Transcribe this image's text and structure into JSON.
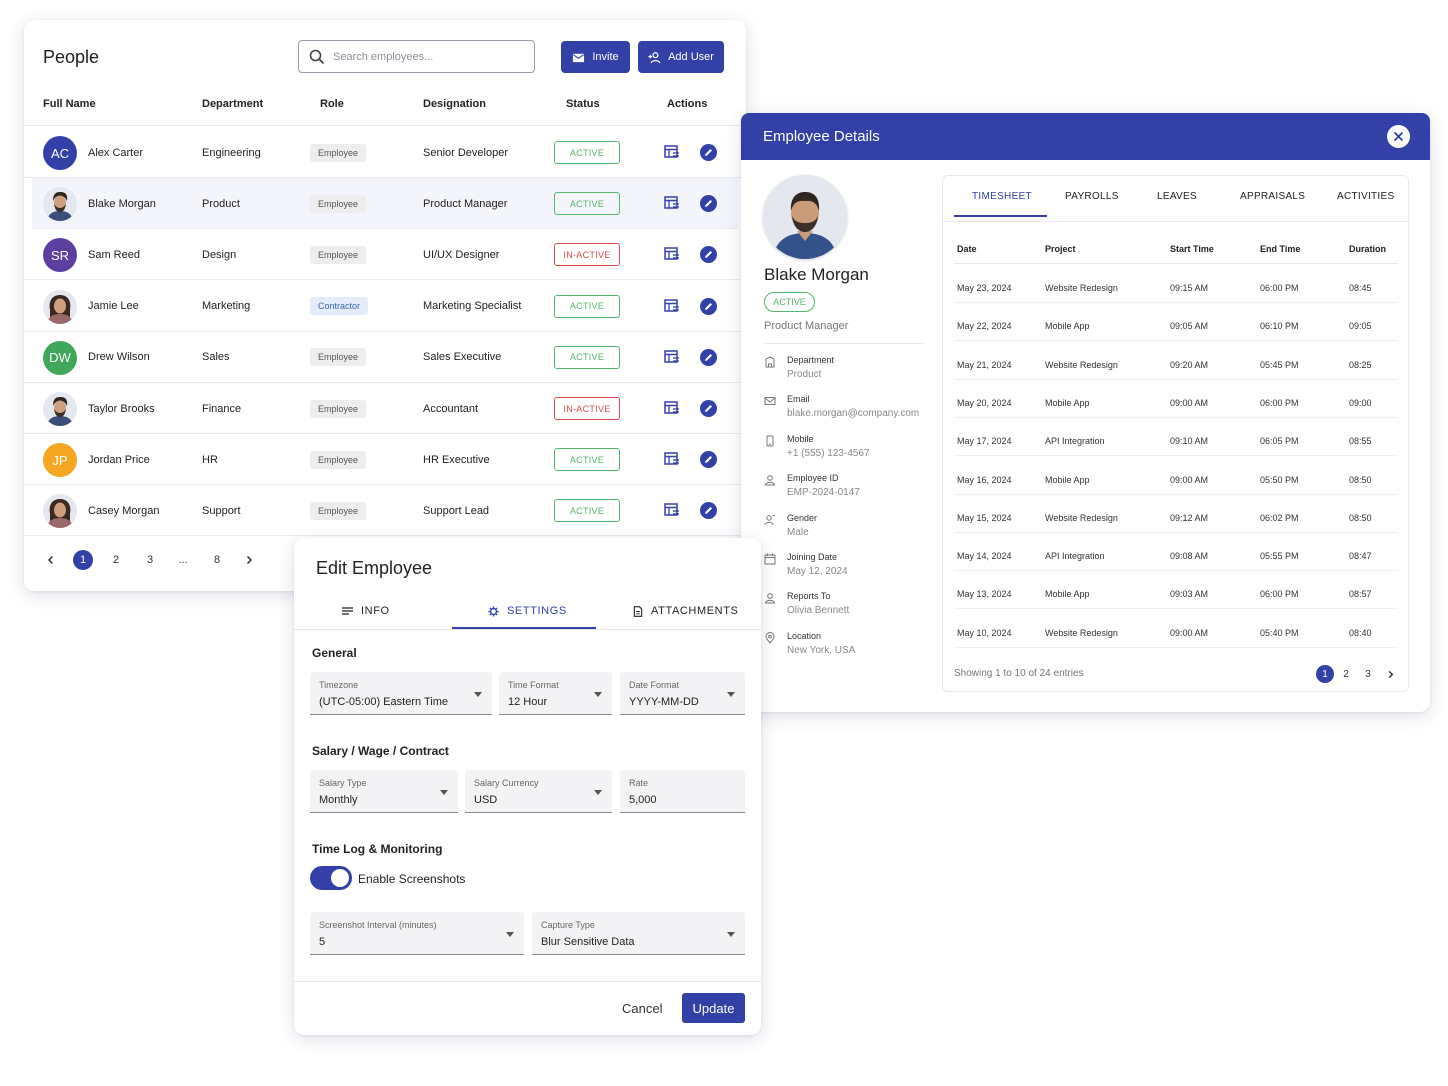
{
  "people": {
    "title": "People",
    "search_placeholder": "Search employees...",
    "invite_label": "Invite",
    "add_user_label": "Add User",
    "columns": [
      "Full Name",
      "Department",
      "Role",
      "Designation",
      "Status",
      "Actions"
    ],
    "rows": [
      {
        "initials": "AC",
        "name": "Alex Carter",
        "department": "Engineering",
        "role": "Employee",
        "designation": "Senior Developer",
        "status": "ACTIVE"
      },
      {
        "initials": "",
        "name": "Blake Morgan",
        "department": "Product",
        "role": "Employee",
        "designation": "Product Manager",
        "status": "ACTIVE"
      },
      {
        "initials": "SR",
        "name": "Sam Reed",
        "department": "Design",
        "role": "Employee",
        "designation": "UI/UX Designer",
        "status": "IN-ACTIVE"
      },
      {
        "initials": "",
        "name": "Jamie Lee",
        "department": "Marketing",
        "role": "Contractor",
        "designation": "Marketing Specialist",
        "status": "ACTIVE"
      },
      {
        "initials": "DW",
        "name": "Drew Wilson",
        "department": "Sales",
        "role": "Employee",
        "designation": "Sales Executive",
        "status": "ACTIVE"
      },
      {
        "initials": "",
        "name": "Taylor Brooks",
        "department": "Finance",
        "role": "Employee",
        "designation": "Accountant",
        "status": "IN-ACTIVE"
      },
      {
        "initials": "JP",
        "name": "Jordan Price",
        "department": "HR",
        "role": "Employee",
        "designation": "HR Executive",
        "status": "ACTIVE"
      },
      {
        "initials": "",
        "name": "Casey Morgan",
        "department": "Support",
        "role": "Employee",
        "designation": "Support Lead",
        "status": "ACTIVE"
      }
    ],
    "pagination": {
      "pages": [
        "1",
        "2",
        "3",
        "...",
        "8"
      ],
      "current": "1"
    }
  },
  "colors": {
    "primary": "#3340a8",
    "active": "#56b46b",
    "inactive": "#e04a4a",
    "avatar_ac": "#3340a8",
    "avatar_sr": "#5c3fa0",
    "avatar_dw": "#3fa65a",
    "avatar_jp": "#f5a623"
  },
  "details": {
    "title": "Employee Details",
    "name": "Blake Morgan",
    "status": "ACTIVE",
    "job_title": "Product Manager",
    "info": [
      {
        "icon": "building-icon",
        "label": "Department",
        "value": "Product"
      },
      {
        "icon": "mail-icon",
        "label": "Email",
        "value": "blake.morgan@company.com"
      },
      {
        "icon": "phone-icon",
        "label": "Mobile",
        "value": "+1 (555) 123-4567"
      },
      {
        "icon": "person-icon",
        "label": "Employee ID",
        "value": "EMP-2024-0147"
      },
      {
        "icon": "gender-icon",
        "label": "Gender",
        "value": "Male"
      },
      {
        "icon": "calendar-icon",
        "label": "Joining Date",
        "value": "May 12, 2024"
      },
      {
        "icon": "manager-icon",
        "label": "Reports To",
        "value": "Olivia Bennett"
      },
      {
        "icon": "location-icon",
        "label": "Location",
        "value": "New York, USA"
      }
    ],
    "tabs": [
      "TIMESHEET",
      "PAYROLLS",
      "LEAVES",
      "APPRAISALS",
      "ACTIVITIES"
    ],
    "selected_tab": "TIMESHEET",
    "timesheet": {
      "columns": [
        "Date",
        "Project",
        "Start Time",
        "End Time",
        "Duration"
      ],
      "rows": [
        [
          "May 23, 2024",
          "Website Redesign",
          "09:15 AM",
          "06:00 PM",
          "08:45"
        ],
        [
          "May 22, 2024",
          "Mobile App",
          "09:05 AM",
          "06:10 PM",
          "09:05"
        ],
        [
          "May 21, 2024",
          "Website Redesign",
          "09:20 AM",
          "05:45 PM",
          "08:25"
        ],
        [
          "May 20, 2024",
          "Mobile App",
          "09:00 AM",
          "06:00 PM",
          "09:00"
        ],
        [
          "May 17, 2024",
          "API Integration",
          "09:10 AM",
          "06:05 PM",
          "08:55"
        ],
        [
          "May 16, 2024",
          "Mobile App",
          "09:00 AM",
          "05:50 PM",
          "08:50"
        ],
        [
          "May 15, 2024",
          "Website Redesign",
          "09:12 AM",
          "06:02 PM",
          "08:50"
        ],
        [
          "May 14, 2024",
          "API Integration",
          "09:08 AM",
          "05:55 PM",
          "08:47"
        ],
        [
          "May 13, 2024",
          "Mobile App",
          "09:03 AM",
          "06:00 PM",
          "08:57"
        ],
        [
          "May 10, 2024",
          "Website Redesign",
          "09:00 AM",
          "05:40 PM",
          "08:40"
        ]
      ],
      "footer": "Showing 1 to 10 of 24 entries",
      "pages": [
        "1",
        "2",
        "3"
      ],
      "current_page": "1"
    }
  },
  "edit": {
    "title": "Edit Employee",
    "tabs": [
      "INFO",
      "SETTINGS",
      "ATTACHMENTS"
    ],
    "selected_tab": "SETTINGS",
    "general_title": "General",
    "timezone": {
      "label": "Timezone",
      "value": "(UTC-05:00) Eastern Time"
    },
    "time_format": {
      "label": "Time Format",
      "value": "12 Hour"
    },
    "date_format": {
      "label": "Date Format",
      "value": "YYYY-MM-DD"
    },
    "salary_title": "Salary / Wage / Contract",
    "salary_type": {
      "label": "Salary Type",
      "value": "Monthly"
    },
    "salary_currency": {
      "label": "Salary Currency",
      "value": "USD"
    },
    "rate": {
      "label": "Rate",
      "value": "5,000"
    },
    "timelog_title": "Time Log & Monitoring",
    "screenshots_label": "Enable Screenshots",
    "screenshots_enabled": true,
    "interval": {
      "label": "Screenshot Interval (minutes)",
      "value": "5"
    },
    "capture_type": {
      "label": "Capture Type",
      "value": "Blur Sensitive Data"
    },
    "cancel_label": "Cancel",
    "update_label": "Update"
  }
}
